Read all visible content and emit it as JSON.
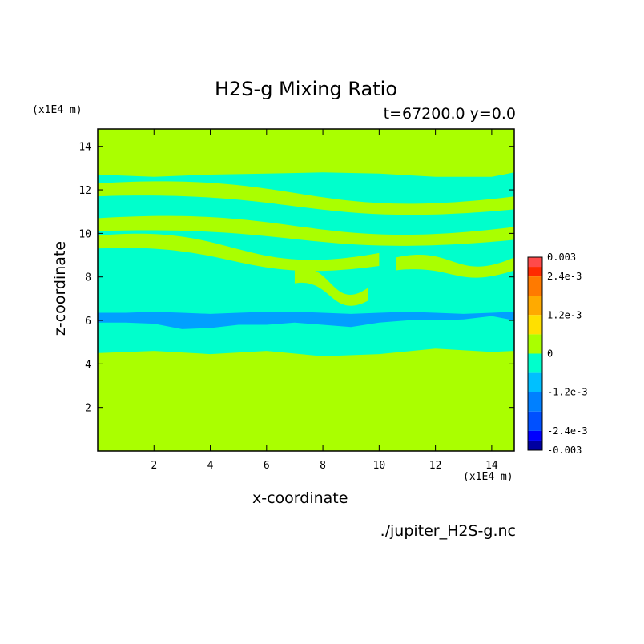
{
  "chart_data": {
    "type": "heatmap",
    "title": "H2S-g Mixing Ratio",
    "subtitle": "t=67200.0 y=0.0",
    "xlabel": "x-coordinate",
    "ylabel": "z-coordinate",
    "x_unit": "(x1E4 m)",
    "y_unit": "(x1E4 m)",
    "source_file": "./jupiter_H2S-g.nc",
    "xlim": [
      0,
      14.8
    ],
    "ylim": [
      0,
      14.8
    ],
    "x_ticks": [
      2,
      4,
      6,
      8,
      10,
      12,
      14
    ],
    "y_ticks": [
      2,
      4,
      6,
      8,
      10,
      12,
      14
    ],
    "background_level_color": "#aaff00",
    "negative_region_color": "#00ffcc",
    "min_region_color": "#00a0ff",
    "regions": [
      {
        "level": "0 to -6e-4",
        "x": [
          0,
          2,
          4,
          6,
          8,
          10,
          12,
          14,
          14.8
        ],
        "z_bottom": [
          4.5,
          4.6,
          4.45,
          4.6,
          4.35,
          4.45,
          4.7,
          4.55,
          4.6
        ],
        "z_top": [
          12.7,
          12.6,
          12.7,
          12.75,
          12.8,
          12.75,
          12.6,
          12.6,
          12.8
        ]
      },
      {
        "level": "-6e-4 to -1.2e-3",
        "x": [
          0,
          1,
          2,
          3,
          4,
          5,
          6,
          7,
          8,
          9,
          10,
          11,
          12,
          13,
          14,
          14.8
        ],
        "z_bottom": [
          5.9,
          5.9,
          5.85,
          5.6,
          5.65,
          5.8,
          5.8,
          5.9,
          5.8,
          5.7,
          5.9,
          6.0,
          6.0,
          6.05,
          6.2,
          6.0
        ],
        "z_top": [
          6.35,
          6.35,
          6.4,
          6.35,
          6.3,
          6.35,
          6.4,
          6.4,
          6.35,
          6.3,
          6.35,
          6.4,
          6.35,
          6.3,
          6.35,
          6.4
        ]
      }
    ],
    "colorbar": {
      "tick_labels": [
        "0.003",
        "2.4e-3",
        "1.2e-3",
        "0",
        "-1.2e-3",
        "-2.4e-3",
        "-0.003"
      ],
      "tick_values": [
        0.003,
        0.0024,
        0.0012,
        0,
        -0.0012,
        -0.0024,
        -0.003
      ],
      "levels": [
        {
          "from": 0.0027,
          "to": 0.003,
          "color": "#ff4a4a"
        },
        {
          "from": 0.0024,
          "to": 0.0027,
          "color": "#ff2a00"
        },
        {
          "from": 0.0018,
          "to": 0.0024,
          "color": "#ff7a00"
        },
        {
          "from": 0.0012,
          "to": 0.0018,
          "color": "#ffaa00"
        },
        {
          "from": 0.0006,
          "to": 0.0012,
          "color": "#ffe000"
        },
        {
          "from": 0.0,
          "to": 0.0006,
          "color": "#aaff00"
        },
        {
          "from": -0.0006,
          "to": 0.0,
          "color": "#00ffcc"
        },
        {
          "from": -0.0012,
          "to": -0.0006,
          "color": "#00c0ff"
        },
        {
          "from": -0.0018,
          "to": -0.0012,
          "color": "#0080ff"
        },
        {
          "from": -0.0024,
          "to": -0.0018,
          "color": "#0050ff"
        },
        {
          "from": -0.0027,
          "to": -0.0024,
          "color": "#0000ff"
        },
        {
          "from": -0.003,
          "to": -0.0027,
          "color": "#0000a0"
        }
      ]
    }
  }
}
